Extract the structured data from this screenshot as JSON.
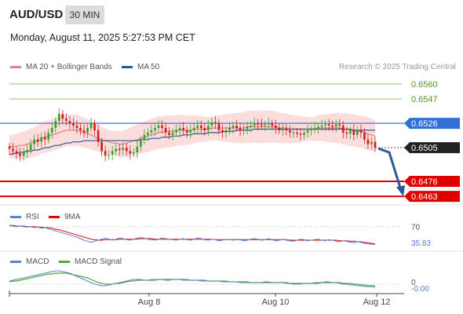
{
  "header": {
    "symbol": "AUD/USD",
    "timeframe": "30 MIN",
    "datetime": "Monday, August 11, 2025 5:27:53 PM CET"
  },
  "legend": {
    "ma20_label": "MA 20 + Bollinger Bands",
    "ma20_color": "#f08080",
    "ma50_label": "MA 50",
    "ma50_color": "#2b5797",
    "credit": "Research © 2025 Trading Central"
  },
  "rsi_legend": {
    "rsi_label": "RSI",
    "rsi_color": "#5b7fd6",
    "ma_label": "9MA",
    "ma_color": "#e00000"
  },
  "macd_legend": {
    "macd_label": "MACD",
    "macd_color": "#5b7fd6",
    "signal_label": "MACD Signal",
    "signal_color": "#4caf2e"
  },
  "chart_data": [
    {
      "type": "candlestick",
      "ylim": [
        0.6455,
        0.6568
      ],
      "levels": [
        {
          "value": 0.656,
          "label": "0.6560",
          "style": "thin-green"
        },
        {
          "value": 0.6547,
          "label": "0.6547",
          "style": "thin-green"
        },
        {
          "value": 0.6526,
          "label": "0.6526",
          "style": "blue-line"
        },
        {
          "value": 0.6505,
          "label": "0.6505",
          "style": "last-price"
        },
        {
          "value": 0.6476,
          "label": "0.6476",
          "style": "red-line"
        },
        {
          "value": 0.6463,
          "label": "0.6463",
          "style": "red-line"
        }
      ],
      "x_ticks": [
        "Aug 8",
        "Aug 10",
        "Aug 12"
      ],
      "last_price": 0.6505,
      "projection_target": 0.6463,
      "closes": [
        0.6504,
        0.6502,
        0.65,
        0.6498,
        0.6501,
        0.6503,
        0.6508,
        0.6512,
        0.651,
        0.6514,
        0.6512,
        0.6518,
        0.6522,
        0.6528,
        0.6534,
        0.653,
        0.6528,
        0.6526,
        0.6524,
        0.6522,
        0.652,
        0.6518,
        0.6522,
        0.6526,
        0.652,
        0.651,
        0.6502,
        0.6498,
        0.6499,
        0.6502,
        0.6504,
        0.6503,
        0.6505,
        0.6502,
        0.65,
        0.6501,
        0.6506,
        0.6512,
        0.6516,
        0.6518,
        0.652,
        0.6522,
        0.6524,
        0.6522,
        0.6518,
        0.6516,
        0.6518,
        0.652,
        0.6522,
        0.652,
        0.6518,
        0.652,
        0.6522,
        0.6524,
        0.6522,
        0.652,
        0.6524,
        0.6527,
        0.6526,
        0.652,
        0.6518,
        0.652,
        0.6522,
        0.6524,
        0.6522,
        0.652,
        0.6521,
        0.6523,
        0.6524,
        0.6526,
        0.6525,
        0.6524,
        0.6525,
        0.6526,
        0.6524,
        0.6522,
        0.652,
        0.6521,
        0.652,
        0.6518,
        0.6518,
        0.6517,
        0.6516,
        0.6518,
        0.652,
        0.6521,
        0.6522,
        0.6523,
        0.6524,
        0.6525,
        0.6524,
        0.6523,
        0.6525,
        0.6524,
        0.6518,
        0.6517,
        0.652,
        0.6516,
        0.652,
        0.6518,
        0.6512,
        0.6508,
        0.651,
        0.6505
      ],
      "ma20": [
        0.6506,
        0.6506,
        0.6506,
        0.6507,
        0.6507,
        0.6508,
        0.6509,
        0.651,
        0.6511,
        0.6513,
        0.6514,
        0.6515,
        0.6516,
        0.6517,
        0.6518,
        0.6519,
        0.652,
        0.652,
        0.652,
        0.652,
        0.6519,
        0.6518,
        0.6517,
        0.6516,
        0.6514,
        0.6513,
        0.6512,
        0.6511,
        0.651,
        0.6509,
        0.6509,
        0.6508,
        0.6508,
        0.6509,
        0.651,
        0.6511,
        0.6512,
        0.6513,
        0.6514,
        0.6515,
        0.6516,
        0.6517,
        0.6518,
        0.6518,
        0.6519,
        0.6519,
        0.6519,
        0.652,
        0.652,
        0.652,
        0.652,
        0.652,
        0.6521,
        0.6521,
        0.6521,
        0.6521,
        0.6521,
        0.6522,
        0.6522,
        0.6522,
        0.6522,
        0.6522,
        0.6522,
        0.6522,
        0.6522,
        0.6522,
        0.6522,
        0.6523,
        0.6523,
        0.6523,
        0.6523,
        0.6523,
        0.6523,
        0.6523,
        0.6523,
        0.6523,
        0.6522,
        0.6522,
        0.6522,
        0.6521,
        0.6521,
        0.6521,
        0.6521,
        0.6521,
        0.6521,
        0.6521,
        0.6521,
        0.6522,
        0.6522,
        0.6522,
        0.6522,
        0.6522,
        0.6522,
        0.6522,
        0.6521,
        0.6521,
        0.652,
        0.652,
        0.6519,
        0.6519,
        0.6518,
        0.6517,
        0.6516,
        0.6515
      ],
      "ma50": [
        0.6499,
        0.65,
        0.65,
        0.6501,
        0.6501,
        0.6502,
        0.6502,
        0.6503,
        0.6503,
        0.6504,
        0.6505,
        0.6505,
        0.6506,
        0.6507,
        0.6507,
        0.6508,
        0.6509,
        0.6509,
        0.651,
        0.651,
        0.651,
        0.6511,
        0.6511,
        0.6511,
        0.6511,
        0.6511,
        0.6511,
        0.6511,
        0.6511,
        0.6511,
        0.6511,
        0.6511,
        0.6511,
        0.6511,
        0.6511,
        0.6511,
        0.6511,
        0.6512,
        0.6512,
        0.6512,
        0.6513,
        0.6513,
        0.6513,
        0.6514,
        0.6514,
        0.6514,
        0.6515,
        0.6515,
        0.6515,
        0.6516,
        0.6516,
        0.6516,
        0.6517,
        0.6517,
        0.6517,
        0.6517,
        0.6518,
        0.6518,
        0.6518,
        0.6518,
        0.6519,
        0.6519,
        0.6519,
        0.6519,
        0.652,
        0.652,
        0.652,
        0.652,
        0.652,
        0.6521,
        0.6521,
        0.6521,
        0.6521,
        0.6521,
        0.6521,
        0.6521,
        0.6521,
        0.6521,
        0.6521,
        0.6521,
        0.6521,
        0.6521,
        0.6521,
        0.6521,
        0.6521,
        0.6521,
        0.6521,
        0.6521,
        0.6521,
        0.6521,
        0.6521,
        0.6521,
        0.6521,
        0.6521,
        0.6521,
        0.6521,
        0.6521,
        0.652,
        0.652,
        0.652,
        0.652,
        0.652,
        0.652,
        0.652
      ]
    },
    {
      "type": "line",
      "name": "RSI",
      "ylim": [
        20,
        80
      ],
      "levels": [
        {
          "value": 70,
          "label": "70"
        }
      ],
      "last_value_label": "35.83",
      "rsi": [
        72,
        71,
        70,
        71,
        70,
        69,
        70,
        68,
        69,
        67,
        68,
        66,
        64,
        62,
        60,
        58,
        56,
        54,
        52,
        50,
        47,
        44,
        42,
        40,
        42,
        44,
        46,
        48,
        46,
        44,
        46,
        48,
        47,
        45,
        44,
        46,
        48,
        49,
        48,
        46,
        45,
        44,
        46,
        48,
        47,
        46,
        45,
        44,
        46,
        47,
        45,
        44,
        46,
        48,
        47,
        45,
        44,
        46,
        45,
        43,
        44,
        46,
        45,
        44,
        46,
        45,
        43,
        44,
        46,
        47,
        46,
        44,
        45,
        47,
        45,
        43,
        44,
        46,
        44,
        43,
        42,
        44,
        46,
        45,
        43,
        44,
        45,
        46,
        44,
        43,
        45,
        44,
        42,
        41,
        43,
        42,
        40,
        39,
        41,
        40,
        38,
        37,
        36,
        36
      ],
      "ma9": [
        72,
        72,
        71,
        71,
        71,
        70,
        70,
        70,
        69,
        69,
        68,
        68,
        67,
        65,
        64,
        62,
        60,
        58,
        56,
        54,
        52,
        50,
        48,
        46,
        45,
        44,
        44,
        45,
        45,
        45,
        45,
        46,
        46,
        46,
        46,
        46,
        46,
        47,
        47,
        47,
        47,
        46,
        46,
        46,
        46,
        46,
        46,
        46,
        46,
        46,
        46,
        46,
        46,
        46,
        46,
        46,
        46,
        46,
        45,
        45,
        45,
        45,
        45,
        45,
        45,
        45,
        45,
        45,
        45,
        45,
        45,
        45,
        45,
        45,
        45,
        45,
        45,
        45,
        45,
        44,
        44,
        44,
        44,
        44,
        44,
        44,
        44,
        44,
        44,
        44,
        44,
        44,
        44,
        43,
        43,
        43,
        42,
        42,
        41,
        41,
        40,
        39,
        38,
        37
      ]
    },
    {
      "type": "line",
      "name": "MACD",
      "ylim": [
        -0.0012,
        0.0022
      ],
      "levels": [
        {
          "value": 0,
          "label": "0"
        }
      ],
      "last_value_label": "-0.00",
      "macd": [
        0.0004,
        0.0005,
        0.0006,
        0.0007,
        0.0008,
        0.0009,
        0.001,
        0.0011,
        0.0012,
        0.0013,
        0.0014,
        0.0015,
        0.0016,
        0.0017,
        0.0017,
        0.0016,
        0.0015,
        0.0014,
        0.0012,
        0.001,
        0.0008,
        0.0006,
        0.0004,
        0.0002,
        0.0,
        -0.0001,
        -0.0002,
        -0.0002,
        -0.0001,
        0.0,
        0.0001,
        0.0002,
        0.0003,
        0.0004,
        0.0005,
        0.0006,
        0.0006,
        0.0006,
        0.0005,
        0.0005,
        0.0006,
        0.0006,
        0.0006,
        0.0006,
        0.0005,
        0.0005,
        0.0006,
        0.0006,
        0.0006,
        0.0005,
        0.0005,
        0.0005,
        0.0005,
        0.0005,
        0.0004,
        0.0004,
        0.0004,
        0.0004,
        0.0004,
        0.0004,
        0.0003,
        0.0003,
        0.0003,
        0.0003,
        0.0003,
        0.0002,
        0.0002,
        0.0002,
        0.0002,
        0.0002,
        0.0002,
        0.0002,
        0.0003,
        0.0003,
        0.0002,
        0.0002,
        0.0002,
        0.0002,
        0.0001,
        0.0001,
        0.0,
        0.0,
        0.0,
        0.0001,
        0.0001,
        0.0001,
        0.0002,
        0.0002,
        0.0002,
        0.0003,
        0.0003,
        0.0002,
        0.0002,
        0.0001,
        0.0,
        0.0,
        -0.0001,
        -0.0001,
        -0.0002,
        -0.0002,
        -0.0003,
        -0.0003,
        -0.0003,
        -0.0004
      ],
      "signal": [
        0.0003,
        0.0004,
        0.0004,
        0.0005,
        0.0006,
        0.0007,
        0.0008,
        0.0009,
        0.001,
        0.0011,
        0.0012,
        0.0013,
        0.0013,
        0.0014,
        0.0014,
        0.0014,
        0.0014,
        0.0013,
        0.0012,
        0.0011,
        0.001,
        0.0009,
        0.0008,
        0.0006,
        0.0004,
        0.0002,
        0.0001,
        0.0,
        0.0,
        0.0,
        0.0001,
        0.0001,
        0.0002,
        0.0003,
        0.0004,
        0.0004,
        0.0005,
        0.0005,
        0.0005,
        0.0005,
        0.0005,
        0.0005,
        0.0006,
        0.0006,
        0.0006,
        0.0006,
        0.0006,
        0.0006,
        0.0006,
        0.0006,
        0.0006,
        0.0005,
        0.0005,
        0.0005,
        0.0005,
        0.0005,
        0.0004,
        0.0004,
        0.0004,
        0.0004,
        0.0004,
        0.0004,
        0.0003,
        0.0003,
        0.0003,
        0.0003,
        0.0003,
        0.0003,
        0.0002,
        0.0002,
        0.0002,
        0.0002,
        0.0002,
        0.0002,
        0.0002,
        0.0002,
        0.0002,
        0.0002,
        0.0002,
        0.0001,
        0.0001,
        0.0001,
        0.0001,
        0.0001,
        0.0001,
        0.0001,
        0.0001,
        0.0001,
        0.0002,
        0.0002,
        0.0002,
        0.0002,
        0.0002,
        0.0002,
        0.0001,
        0.0001,
        0.0001,
        0.0,
        0.0,
        -0.0001,
        -0.0001,
        -0.0002,
        -0.0002,
        -0.0002
      ]
    }
  ]
}
